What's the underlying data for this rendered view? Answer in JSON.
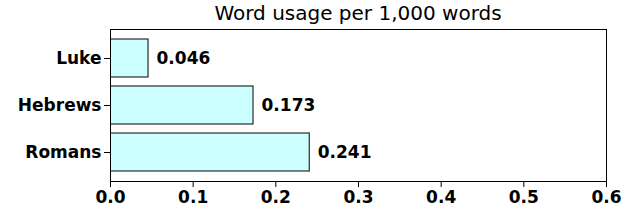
{
  "chart_data": {
    "type": "bar",
    "title": "Word usage per 1,000 words",
    "orientation": "horizontal",
    "categories": [
      "Luke",
      "Hebrews",
      "Romans"
    ],
    "values": [
      0.046,
      0.173,
      0.241
    ],
    "color": "#ccffff",
    "xlim": [
      0,
      0.6
    ],
    "xticks": [
      {
        "value": 0,
        "label": "0.0"
      },
      0.1,
      0.2,
      0.3,
      0.4,
      0.5,
      0.6
    ],
    "data_labels": true,
    "grid": false
  }
}
